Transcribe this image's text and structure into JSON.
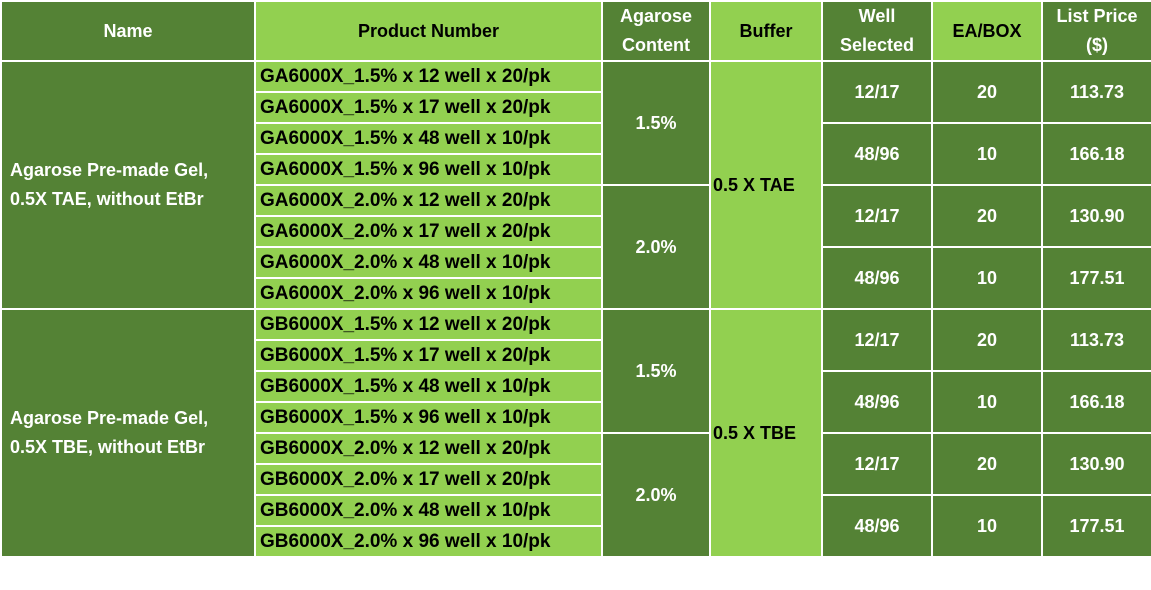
{
  "header": [
    [
      "Name"
    ],
    [
      "Product Number"
    ],
    [
      "Agarose",
      "Content"
    ],
    [
      "Buffer"
    ],
    [
      "Well",
      "Selected"
    ],
    [
      "EA/BOX"
    ],
    [
      "List Price",
      "($)"
    ]
  ],
  "groups": [
    {
      "name": [
        "Agarose Pre-made Gel,",
        "0.5X TAE, without EtBr"
      ],
      "buffer": "0.5 X TAE",
      "subgroups": [
        {
          "content": "1.5%",
          "products": [
            "GA6000X_1.5% x 12 well x 20/pk",
            "GA6000X_1.5% x 17 well x 20/pk",
            "GA6000X_1.5% x 48 well x 10/pk",
            "GA6000X_1.5% x 96 well x 10/pk"
          ],
          "wells": [
            {
              "well": "12/17",
              "ea": "20",
              "price": "113.73"
            },
            {
              "well": "48/96",
              "ea": "10",
              "price": "166.18"
            }
          ]
        },
        {
          "content": "2.0%",
          "products": [
            "GA6000X_2.0% x 12 well x 20/pk",
            "GA6000X_2.0% x 17 well x 20/pk",
            "GA6000X_2.0% x 48 well x 10/pk",
            "GA6000X_2.0% x 96 well x 10/pk"
          ],
          "wells": [
            {
              "well": "12/17",
              "ea": "20",
              "price": "130.90"
            },
            {
              "well": "48/96",
              "ea": "10",
              "price": "177.51"
            }
          ]
        }
      ]
    },
    {
      "name": [
        "Agarose Pre-made Gel,",
        "0.5X TBE, without EtBr"
      ],
      "buffer": "0.5 X TBE",
      "subgroups": [
        {
          "content": "1.5%",
          "products": [
            "GB6000X_1.5% x 12 well x 20/pk",
            "GB6000X_1.5% x 17 well x 20/pk",
            "GB6000X_1.5% x 48 well x 10/pk",
            "GB6000X_1.5% x 96 well x 10/pk"
          ],
          "wells": [
            {
              "well": "12/17",
              "ea": "20",
              "price": "113.73"
            },
            {
              "well": "48/96",
              "ea": "10",
              "price": "166.18"
            }
          ]
        },
        {
          "content": "2.0%",
          "products": [
            "GB6000X_2.0% x 12 well x 20/pk",
            "GB6000X_2.0% x 17 well x 20/pk",
            "GB6000X_2.0% x 48 well x 10/pk",
            "GB6000X_2.0% x 96 well x 10/pk"
          ],
          "wells": [
            {
              "well": "12/17",
              "ea": "20",
              "price": "130.90"
            },
            {
              "well": "48/96",
              "ea": "10",
              "price": "177.51"
            }
          ]
        }
      ]
    }
  ]
}
